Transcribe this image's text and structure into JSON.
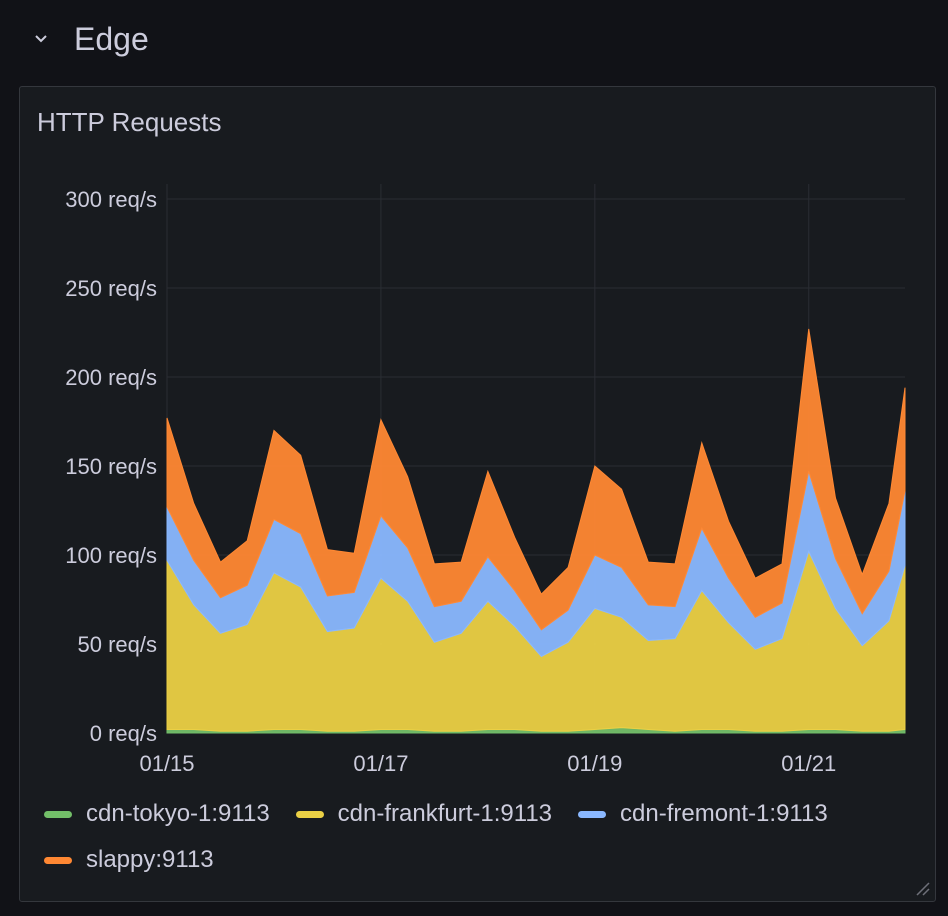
{
  "row": {
    "title": "Edge",
    "collapse_icon": "chevron-down-icon"
  },
  "panel": {
    "title": "HTTP Requests",
    "resize_icon": "resize-handle-icon"
  },
  "chart_data": {
    "type": "area",
    "stacked": true,
    "grid": true,
    "legend_position": "bottom",
    "y_ticks": [
      "0 req/s",
      "50 req/s",
      "100 req/s",
      "150 req/s",
      "200 req/s",
      "250 req/s",
      "300 req/s"
    ],
    "ylim": [
      0,
      300
    ],
    "x_ticks": [
      "01/15",
      "01/17",
      "01/19",
      "01/21"
    ],
    "x_tick_days": [
      15,
      17,
      19,
      21
    ],
    "xlim": [
      15,
      21.9
    ],
    "x": [
      15.0,
      15.25,
      15.5,
      15.75,
      16.0,
      16.25,
      16.5,
      16.75,
      17.0,
      17.25,
      17.5,
      17.75,
      18.0,
      18.25,
      18.5,
      18.75,
      19.0,
      19.25,
      19.5,
      19.75,
      20.0,
      20.25,
      20.5,
      20.75,
      21.0,
      21.25,
      21.5,
      21.75,
      21.9
    ],
    "series": [
      {
        "name": "cdn-tokyo-1:9113",
        "color": "#73bf69",
        "values": [
          2,
          2,
          1,
          1,
          2,
          2,
          1,
          1,
          2,
          2,
          1,
          1,
          2,
          2,
          1,
          1,
          2,
          3,
          2,
          1,
          2,
          2,
          1,
          1,
          2,
          2,
          1,
          1,
          2
        ]
      },
      {
        "name": "cdn-frankfurt-1:9113",
        "color": "#ebd045",
        "values": [
          95,
          70,
          55,
          60,
          88,
          80,
          56,
          58,
          85,
          72,
          50,
          55,
          72,
          58,
          42,
          50,
          68,
          62,
          50,
          52,
          78,
          60,
          46,
          52,
          100,
          68,
          48,
          62,
          92
        ]
      },
      {
        "name": "cdn-fremont-1:9113",
        "color": "#8ab8ff",
        "values": [
          30,
          25,
          20,
          22,
          30,
          30,
          20,
          20,
          35,
          30,
          20,
          18,
          25,
          20,
          15,
          18,
          30,
          28,
          20,
          18,
          35,
          25,
          18,
          20,
          45,
          28,
          18,
          28,
          42
        ]
      },
      {
        "name": "slappy:9113",
        "color": "#ff8833",
        "values": [
          50,
          32,
          20,
          25,
          50,
          44,
          26,
          22,
          54,
          40,
          24,
          22,
          48,
          30,
          20,
          24,
          50,
          44,
          24,
          24,
          48,
          32,
          22,
          22,
          80,
          34,
          22,
          38,
          58
        ]
      }
    ]
  }
}
